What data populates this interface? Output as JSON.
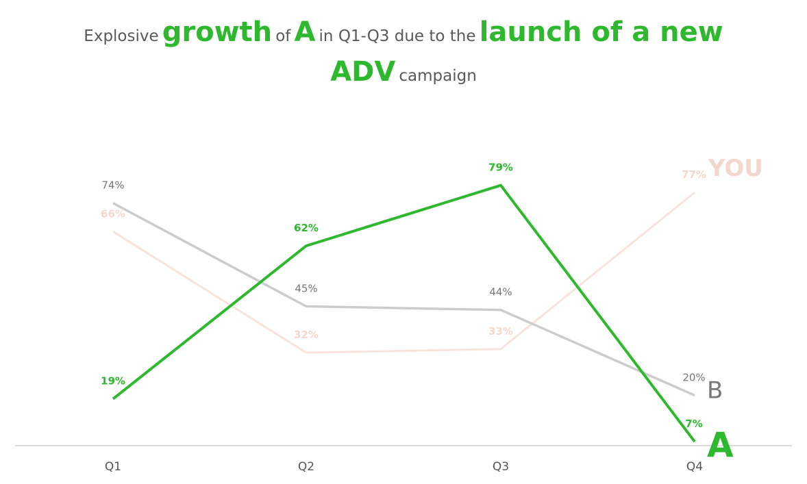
{
  "title": {
    "line1": [
      {
        "text": "Explosive",
        "style": "small"
      },
      {
        "text": "growth",
        "style": "big"
      },
      {
        "text": "of",
        "style": "small"
      },
      {
        "text": "A",
        "style": "big"
      },
      {
        "text": "in Q1-Q3 due to the",
        "style": "small"
      },
      {
        "text": "launch of a new",
        "style": "big"
      }
    ],
    "line2": [
      {
        "text": "ADV",
        "style": "big"
      },
      {
        "text": "campaign",
        "style": "small"
      }
    ]
  },
  "chart_data": {
    "type": "line",
    "categories": [
      "Q1",
      "Q2",
      "Q3",
      "Q4"
    ],
    "ylim": [
      0,
      85
    ],
    "grid": false,
    "legend": "inline end labels",
    "series": [
      {
        "name": "YOU",
        "values": [
          66,
          32,
          33,
          77
        ],
        "labels": [
          "66%",
          "32%",
          "33%",
          "77%"
        ],
        "color": "#F8E3DC",
        "label_color": "#F4D7CC",
        "width": 3,
        "bold": true,
        "name_size": 34
      },
      {
        "name": "B",
        "values": [
          74,
          45,
          44,
          20
        ],
        "labels": [
          "74%",
          "45%",
          "44%",
          "20%"
        ],
        "color": "#CCCCCC",
        "label_color": "#777777",
        "width": 3.5,
        "bold": false,
        "name_size": 34
      },
      {
        "name": "A",
        "values": [
          19,
          62,
          79,
          7
        ],
        "labels": [
          "19%",
          "62%",
          "79%",
          "7%"
        ],
        "color": "#2EB82E",
        "label_color": "#2EB82E",
        "width": 4,
        "bold": true,
        "name_size": 50
      }
    ]
  }
}
